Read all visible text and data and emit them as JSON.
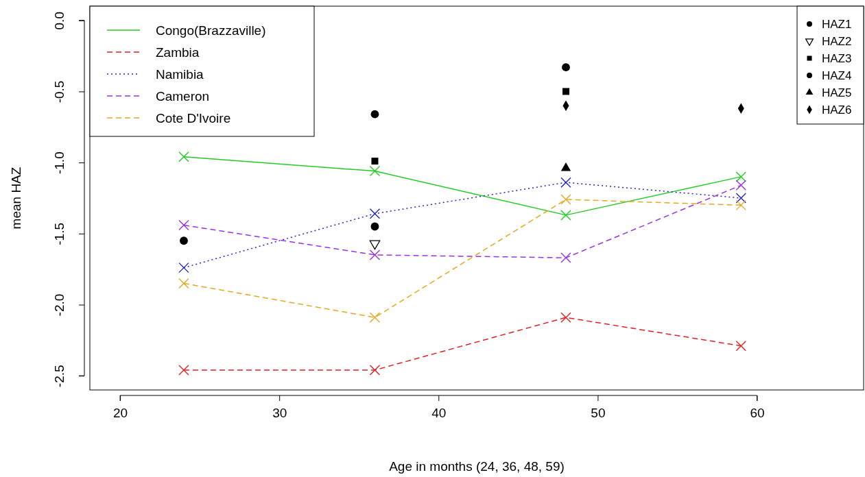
{
  "chart_data": {
    "type": "line",
    "xlabel": "Age in months (24, 36, 48, 59)",
    "ylabel": "mean HAZ",
    "x": [
      24,
      36,
      48,
      59
    ],
    "xlim": [
      18.1,
      66.7
    ],
    "xticks": [
      20,
      30,
      40,
      50,
      60
    ],
    "ylim": [
      -2.6,
      0.1
    ],
    "yticks": [
      {
        "value": 0,
        "label": "0.0"
      },
      -0.5,
      {
        "value": -1,
        "label": "-1.0"
      },
      -1.5,
      {
        "value": -2,
        "label": "-2.0"
      },
      -2.5
    ],
    "legend": "top left",
    "grid": false,
    "marker": "cross",
    "series": [
      {
        "name": "Congo(Brazzaville)",
        "color": "#22cc22",
        "line_style": "solid",
        "values": [
          -0.96,
          -1.06,
          -1.37,
          -1.1
        ]
      },
      {
        "name": "Zambia",
        "color": "#dd2222",
        "line_style": "dashed",
        "values": [
          -2.46,
          -2.46,
          -2.09,
          -2.29
        ]
      },
      {
        "name": "Namibia",
        "color": "#2222cc",
        "line_style": "dotted",
        "values": [
          -1.74,
          -1.36,
          -1.14,
          -1.25
        ]
      },
      {
        "name": "Cameron",
        "color": "#9933dd",
        "line_style": "dashed",
        "values": [
          -1.44,
          -1.65,
          -1.67,
          -1.16
        ]
      },
      {
        "name": "Cote D'Ivoire",
        "color": "#e6a820",
        "line_style": "dashed",
        "values": [
          -1.85,
          -2.09,
          -1.26,
          -1.3
        ]
      },
      {
        "name": "HAZ1",
        "type": "scatter",
        "marker": "circle",
        "color": "#000000",
        "values": [
          -1.55,
          -1.45,
          null,
          null
        ]
      },
      {
        "name": "HAZ2",
        "type": "scatter",
        "marker": "triangle-down",
        "color": "#000000",
        "values": [
          null,
          -1.57,
          null,
          null
        ]
      },
      {
        "name": "HAZ3",
        "type": "scatter",
        "marker": "square",
        "color": "#000000",
        "values": [
          null,
          -0.99,
          -0.5,
          null
        ]
      },
      {
        "name": "HAZ4",
        "type": "scatter",
        "marker": "circle",
        "color": "#000000",
        "values": [
          null,
          -0.66,
          -0.33,
          null
        ]
      },
      {
        "name": "HAZ5",
        "type": "scatter",
        "marker": "triangle",
        "color": "#000000",
        "values": [
          null,
          null,
          -1.04,
          null
        ]
      },
      {
        "name": "HAZ6",
        "type": "scatter",
        "marker": "diamond",
        "color": "#000000",
        "values": [
          null,
          null,
          -0.6,
          -0.62
        ]
      }
    ]
  }
}
